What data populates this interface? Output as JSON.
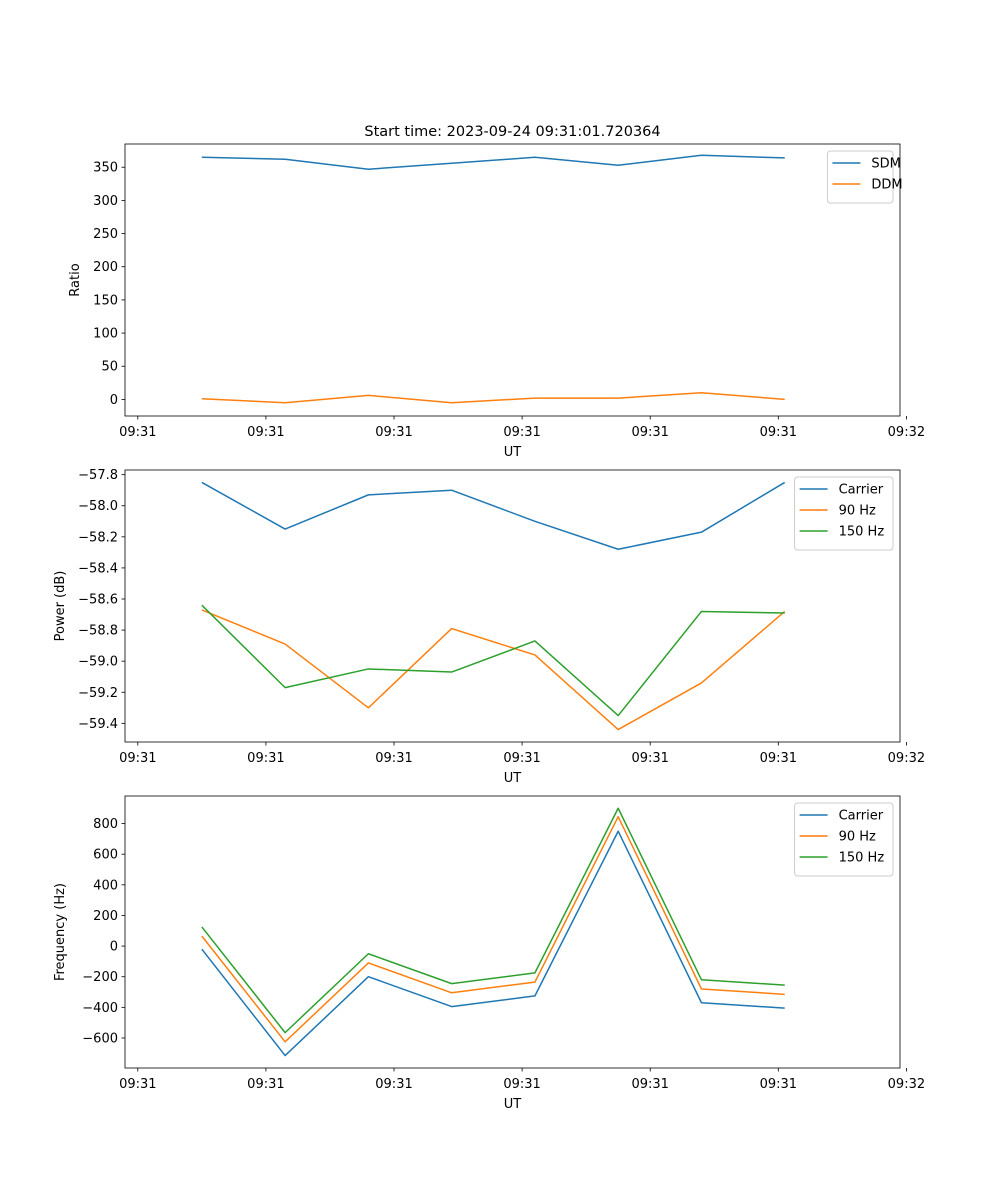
{
  "figure_title": "Start time: 2023-09-24 09:31:01.720364",
  "chart_data": [
    {
      "type": "line",
      "title": "Start time: 2023-09-24 09:31:01.720364",
      "xlabel": "UT",
      "ylabel": "Ratio",
      "x": [
        0.5,
        1.15,
        1.8,
        2.45,
        3.1,
        3.75,
        4.4,
        5.05
      ],
      "xlim": [
        -0.1,
        5.95
      ],
      "xticks": [
        0,
        1,
        2,
        3,
        4,
        5,
        6
      ],
      "xtick_labels": [
        "09:31",
        "09:31",
        "09:31",
        "09:31",
        "09:31",
        "09:31",
        "09:32"
      ],
      "ylim": [
        -25,
        385
      ],
      "yticks": [
        0,
        50,
        100,
        150,
        200,
        250,
        300,
        350
      ],
      "ytick_labels": [
        "0",
        "50",
        "100",
        "150",
        "200",
        "250",
        "300",
        "350"
      ],
      "legend_position": "top-right",
      "series": [
        {
          "name": "SDM",
          "color": "#1f77b4",
          "values": [
            365,
            362,
            347,
            356,
            365,
            353,
            368,
            364
          ]
        },
        {
          "name": "DDM",
          "color": "#ff7f0e",
          "values": [
            1,
            -5,
            6,
            -5,
            2,
            2,
            10,
            0
          ]
        }
      ]
    },
    {
      "type": "line",
      "title": "",
      "xlabel": "UT",
      "ylabel": "Power (dB)",
      "x": [
        0.5,
        1.15,
        1.8,
        2.45,
        3.1,
        3.75,
        4.4,
        5.05
      ],
      "xlim": [
        -0.1,
        5.95
      ],
      "xticks": [
        0,
        1,
        2,
        3,
        4,
        5,
        6
      ],
      "xtick_labels": [
        "09:31",
        "09:31",
        "09:31",
        "09:31",
        "09:31",
        "09:31",
        "09:32"
      ],
      "ylim": [
        -59.52,
        -57.77
      ],
      "yticks": [
        -59.4,
        -59.2,
        -59.0,
        -58.8,
        -58.6,
        -58.4,
        -58.2,
        -58.0,
        -57.8
      ],
      "ytick_labels": [
        "−59.4",
        "−59.2",
        "−59.0",
        "−58.8",
        "−58.6",
        "−58.4",
        "−58.2",
        "−58.0",
        "−57.8"
      ],
      "legend_position": "top-right",
      "series": [
        {
          "name": "Carrier",
          "color": "#1f77b4",
          "values": [
            -57.85,
            -58.15,
            -57.93,
            -57.9,
            -58.1,
            -58.28,
            -58.17,
            -57.85
          ]
        },
        {
          "name": "90 Hz",
          "color": "#ff7f0e",
          "values": [
            -58.67,
            -58.89,
            -59.3,
            -58.79,
            -58.96,
            -59.44,
            -59.14,
            -58.68
          ]
        },
        {
          "name": "150 Hz",
          "color": "#2ca02c",
          "values": [
            -58.64,
            -59.17,
            -59.05,
            -59.07,
            -58.87,
            -59.35,
            -58.68,
            -58.69
          ]
        }
      ]
    },
    {
      "type": "line",
      "title": "",
      "xlabel": "UT",
      "ylabel": "Frequency (Hz)",
      "x": [
        0.5,
        1.15,
        1.8,
        2.45,
        3.1,
        3.75,
        4.4,
        5.05
      ],
      "xlim": [
        -0.1,
        5.95
      ],
      "xticks": [
        0,
        1,
        2,
        3,
        4,
        5,
        6
      ],
      "xtick_labels": [
        "09:31",
        "09:31",
        "09:31",
        "09:31",
        "09:31",
        "09:31",
        "09:32"
      ],
      "ylim": [
        -796,
        980
      ],
      "yticks": [
        -600,
        -400,
        -200,
        0,
        200,
        400,
        600,
        800
      ],
      "ytick_labels": [
        "−600",
        "−400",
        "−200",
        "0",
        "200",
        "400",
        "600",
        "800"
      ],
      "legend_position": "top-right",
      "series": [
        {
          "name": "Carrier",
          "color": "#1f77b4",
          "values": [
            -20,
            -715,
            -200,
            -395,
            -325,
            750,
            -370,
            -405
          ]
        },
        {
          "name": "90 Hz",
          "color": "#ff7f0e",
          "values": [
            65,
            -625,
            -110,
            -305,
            -235,
            845,
            -280,
            -315
          ]
        },
        {
          "name": "150 Hz",
          "color": "#2ca02c",
          "values": [
            125,
            -565,
            -50,
            -245,
            -175,
            900,
            -220,
            -255
          ]
        }
      ]
    }
  ]
}
